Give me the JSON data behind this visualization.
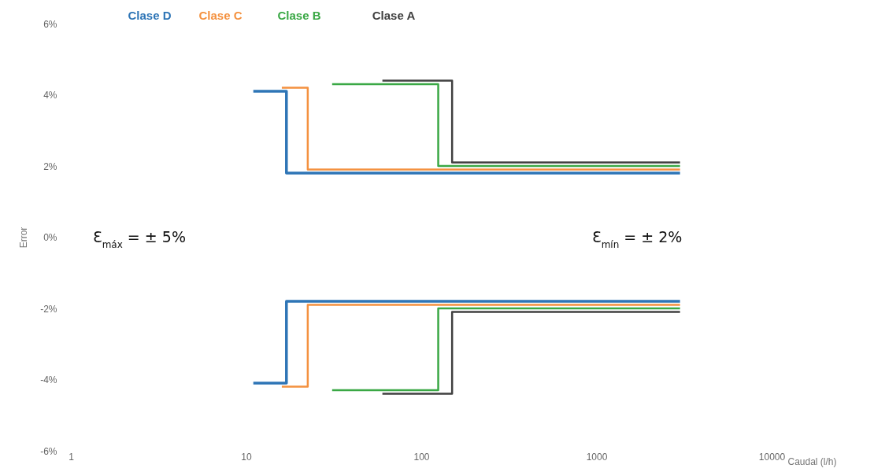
{
  "chart_data": {
    "type": "step",
    "xlabel": "Caudal (l/h)",
    "ylabel": "Error",
    "log": "x",
    "xlim": [
      1,
      10000
    ],
    "xticks": [
      1,
      10,
      100,
      1000,
      10000
    ],
    "ylim": [
      -6,
      6
    ],
    "yticks": [
      {
        "value": -6,
        "label": "-6%"
      },
      {
        "value": -4,
        "label": "-4%"
      },
      {
        "value": -2,
        "label": "-2%"
      },
      {
        "value": 0,
        "label": "0%"
      },
      {
        "value": 2,
        "label": "2%"
      },
      {
        "value": 4,
        "label": "4%"
      },
      {
        "value": 6,
        "label": "6%"
      }
    ],
    "grid": false,
    "series": [
      {
        "name": "Clase D",
        "color": "#2e75b6",
        "x": [
          11,
          17,
          3000
        ],
        "values": [
          4.1,
          1.8,
          1.8
        ]
      },
      {
        "color": "#2e75b6",
        "x": [
          11,
          17,
          3000
        ],
        "values": [
          -4.1,
          -1.8,
          -1.8
        ]
      },
      {
        "name": "Clase C",
        "color": "#f4913f",
        "x": [
          16,
          22.5,
          3000
        ],
        "values": [
          4.2,
          1.9,
          1.9
        ]
      },
      {
        "color": "#f4913f",
        "x": [
          16,
          22.5,
          3000
        ],
        "values": [
          -4.2,
          -1.9,
          -1.9
        ]
      },
      {
        "name": "Clase B",
        "color": "#3aa845",
        "x": [
          31,
          125,
          3000
        ],
        "values": [
          4.3,
          2.0,
          2.0
        ]
      },
      {
        "color": "#3aa845",
        "x": [
          31,
          125,
          3000
        ],
        "values": [
          -4.3,
          -2.0,
          -2.0
        ]
      },
      {
        "name": "Clase A",
        "color": "#404040",
        "x": [
          60,
          150,
          3000
        ],
        "values": [
          4.4,
          2.1,
          2.1
        ]
      },
      {
        "color": "#404040",
        "x": [
          60,
          150,
          3000
        ],
        "values": [
          -4.4,
          -2.1,
          -2.1
        ]
      }
    ],
    "annotations": [
      "Ɛ$_{máx}$ = ± 5%",
      "Ɛ$_{mín}$ = ± 2%"
    ]
  }
}
